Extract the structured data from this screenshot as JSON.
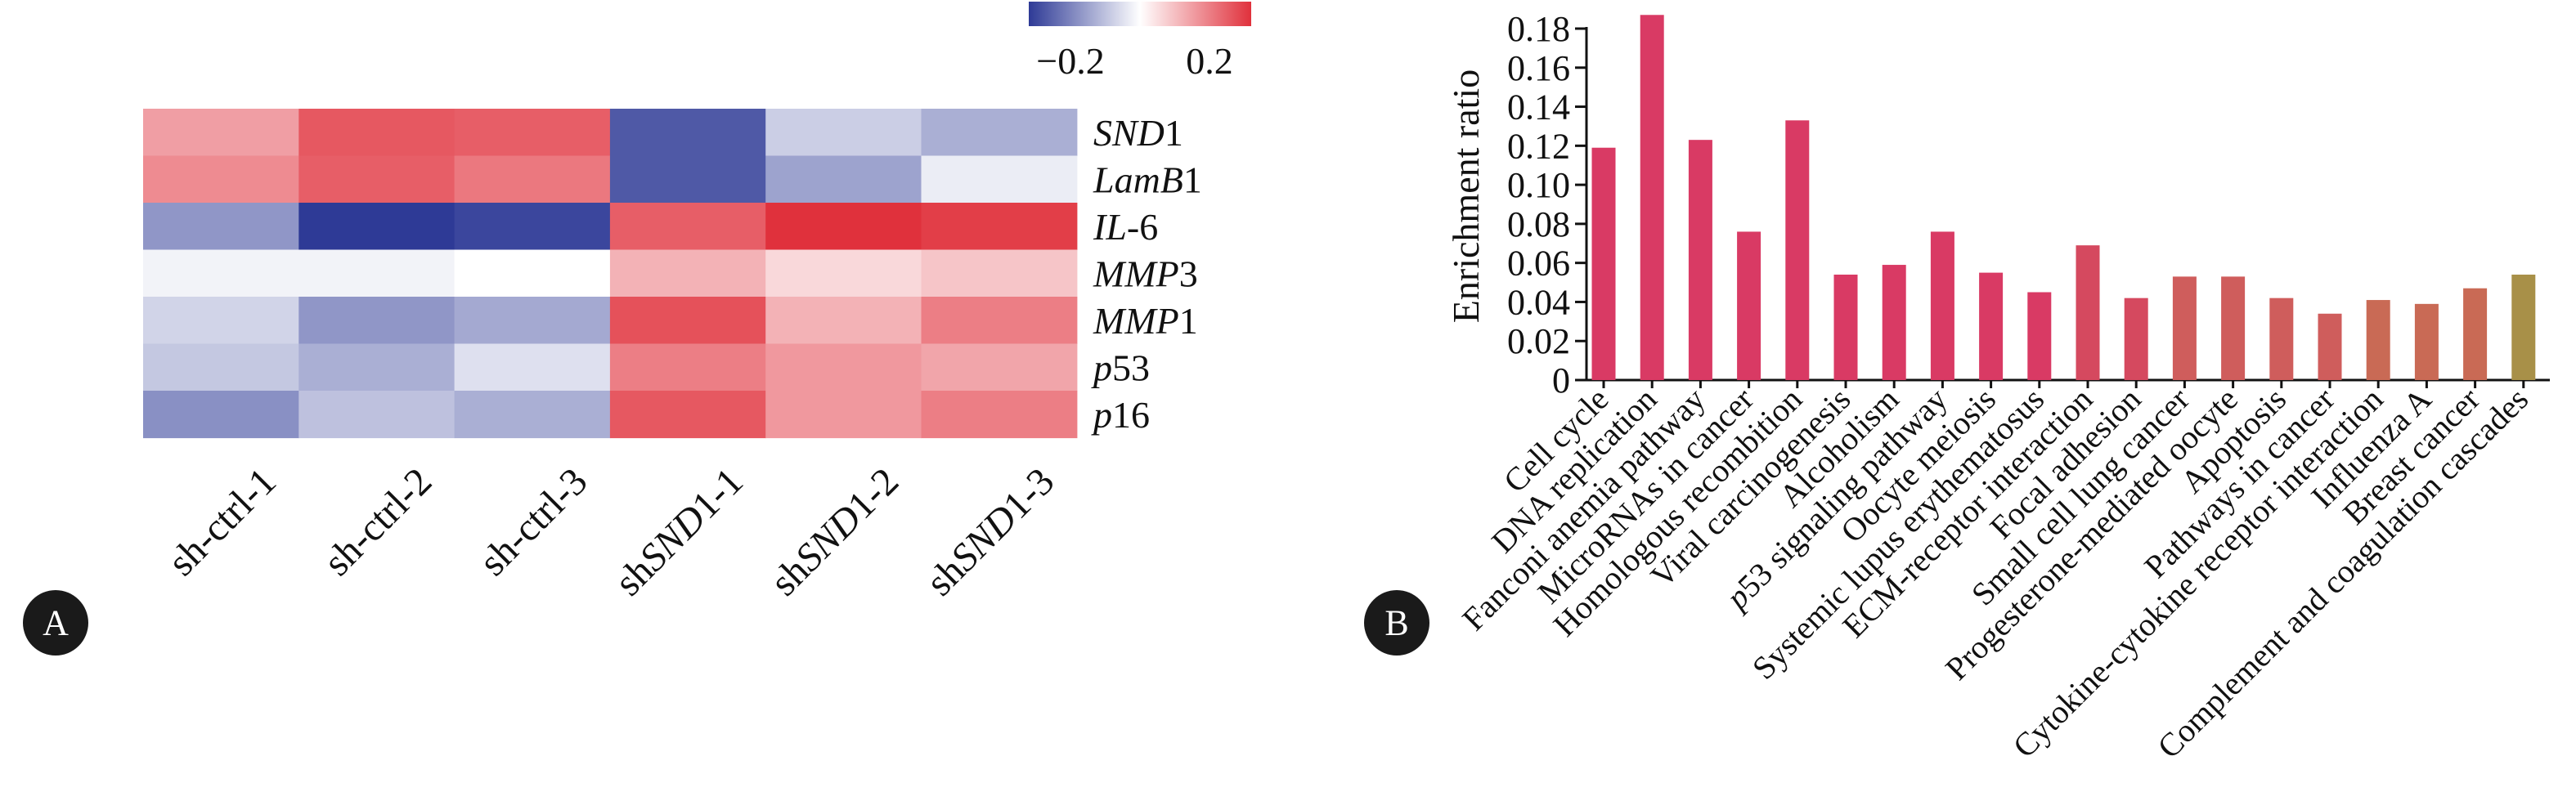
{
  "panels": [
    {
      "letter": "A"
    },
    {
      "letter": "B"
    }
  ],
  "chart_data": [
    {
      "type": "heatmap",
      "columns": [
        "sh-ctrl-1",
        "sh-ctrl-2",
        "sh-ctrl-3",
        "shSND1-1",
        "shSND1-2",
        "shSND1-3"
      ],
      "columns_parts": [
        [
          {
            "t": "sh-ctrl-1",
            "i": false
          }
        ],
        [
          {
            "t": "sh-ctrl-2",
            "i": false
          }
        ],
        [
          {
            "t": "sh-ctrl-3",
            "i": false
          }
        ],
        [
          {
            "t": "sh",
            "i": false
          },
          {
            "t": "SND",
            "i": true
          },
          {
            "t": "1-1",
            "i": false
          }
        ],
        [
          {
            "t": "sh",
            "i": false
          },
          {
            "t": "SND",
            "i": true
          },
          {
            "t": "1-2",
            "i": false
          }
        ],
        [
          {
            "t": "sh",
            "i": false
          },
          {
            "t": "SND",
            "i": true
          },
          {
            "t": "1-3",
            "i": false
          }
        ]
      ],
      "rows": [
        "SND1",
        "LamB1",
        "IL-6",
        "MMP3",
        "MMP1",
        "p53",
        "p16"
      ],
      "rows_parts": [
        [
          {
            "t": "SND",
            "i": true
          },
          {
            "t": "1",
            "i": false
          }
        ],
        [
          {
            "t": "LamB",
            "i": true
          },
          {
            "t": "1",
            "i": false
          }
        ],
        [
          {
            "t": "IL",
            "i": true
          },
          {
            "t": "-6",
            "i": false
          }
        ],
        [
          {
            "t": "MMP",
            "i": true
          },
          {
            "t": "3",
            "i": false
          }
        ],
        [
          {
            "t": "MMP",
            "i": true
          },
          {
            "t": "1",
            "i": false
          }
        ],
        [
          {
            "t": "p",
            "i": true
          },
          {
            "t": "53",
            "i": false
          }
        ],
        [
          {
            "t": "p",
            "i": true
          },
          {
            "t": "16",
            "i": false
          }
        ]
      ],
      "values": [
        [
          0.15,
          0.26,
          0.25,
          -0.27,
          -0.08,
          -0.13
        ],
        [
          0.18,
          0.25,
          0.21,
          -0.27,
          -0.15,
          -0.03
        ],
        [
          -0.17,
          -0.32,
          -0.3,
          0.25,
          0.33,
          0.3
        ],
        [
          -0.02,
          -0.02,
          0.0,
          0.12,
          0.06,
          0.09
        ],
        [
          -0.07,
          -0.17,
          -0.14,
          0.27,
          0.12,
          0.2
        ],
        [
          -0.09,
          -0.13,
          -0.05,
          0.2,
          0.16,
          0.14
        ],
        [
          -0.18,
          -0.1,
          -0.13,
          0.26,
          0.16,
          0.2
        ]
      ],
      "colorbar": {
        "ticks": [
          -0.2,
          0.2
        ],
        "tick_labels": [
          "−0.2",
          "0.2"
        ],
        "range": [
          -0.32,
          0.32
        ],
        "low_color": "#2e3a96",
        "mid_color": "#ffffff",
        "high_color": "#e0313c"
      }
    },
    {
      "type": "bar",
      "ylabel": "Enrichment ratio",
      "ylim": [
        0,
        0.18
      ],
      "yticks": [
        0,
        0.02,
        0.04,
        0.06,
        0.08,
        0.1,
        0.12,
        0.14,
        0.16,
        0.18
      ],
      "ytick_labels": [
        "0",
        "0.02",
        "0.04",
        "0.06",
        "0.08",
        "0.10",
        "0.12",
        "0.14",
        "0.16",
        "0.18"
      ],
      "categories": [
        "Cell cycle",
        "DNA replication",
        "Fanconi anemia pathway",
        "MicroRNAs in cancer",
        "Homologous recombition",
        "Viral carcinogenesis",
        "Alcoholism",
        "p53 signaling pathway",
        "Oocyte meiosis",
        "Systemic lupus erythematosus",
        "ECM-receptor interaction",
        "Focal adhesion",
        "Small cell lung cancer",
        "Progesterone-mediated oocyte",
        "Apoptosis",
        "Pathways in cancer",
        "Cytokine-cytokine receptor interaction",
        "Influenza A",
        "Breast cancer",
        "Complement and coagulation cascades"
      ],
      "values": [
        0.119,
        0.187,
        0.123,
        0.076,
        0.133,
        0.054,
        0.059,
        0.076,
        0.055,
        0.045,
        0.069,
        0.042,
        0.053,
        0.053,
        0.042,
        0.034,
        0.041,
        0.039,
        0.047,
        0.054
      ],
      "colors": [
        "#d93a64",
        "#d93a64",
        "#d93a64",
        "#d93a64",
        "#d93a64",
        "#d93a64",
        "#d93a64",
        "#d93a64",
        "#d93a64",
        "#d93a64",
        "#d5495f",
        "#d5495f",
        "#cf5d5c",
        "#cf5d5c",
        "#cf5d5c",
        "#cf5d5c",
        "#c96a55",
        "#c96a55",
        "#c96a55",
        "#a89048"
      ]
    }
  ]
}
